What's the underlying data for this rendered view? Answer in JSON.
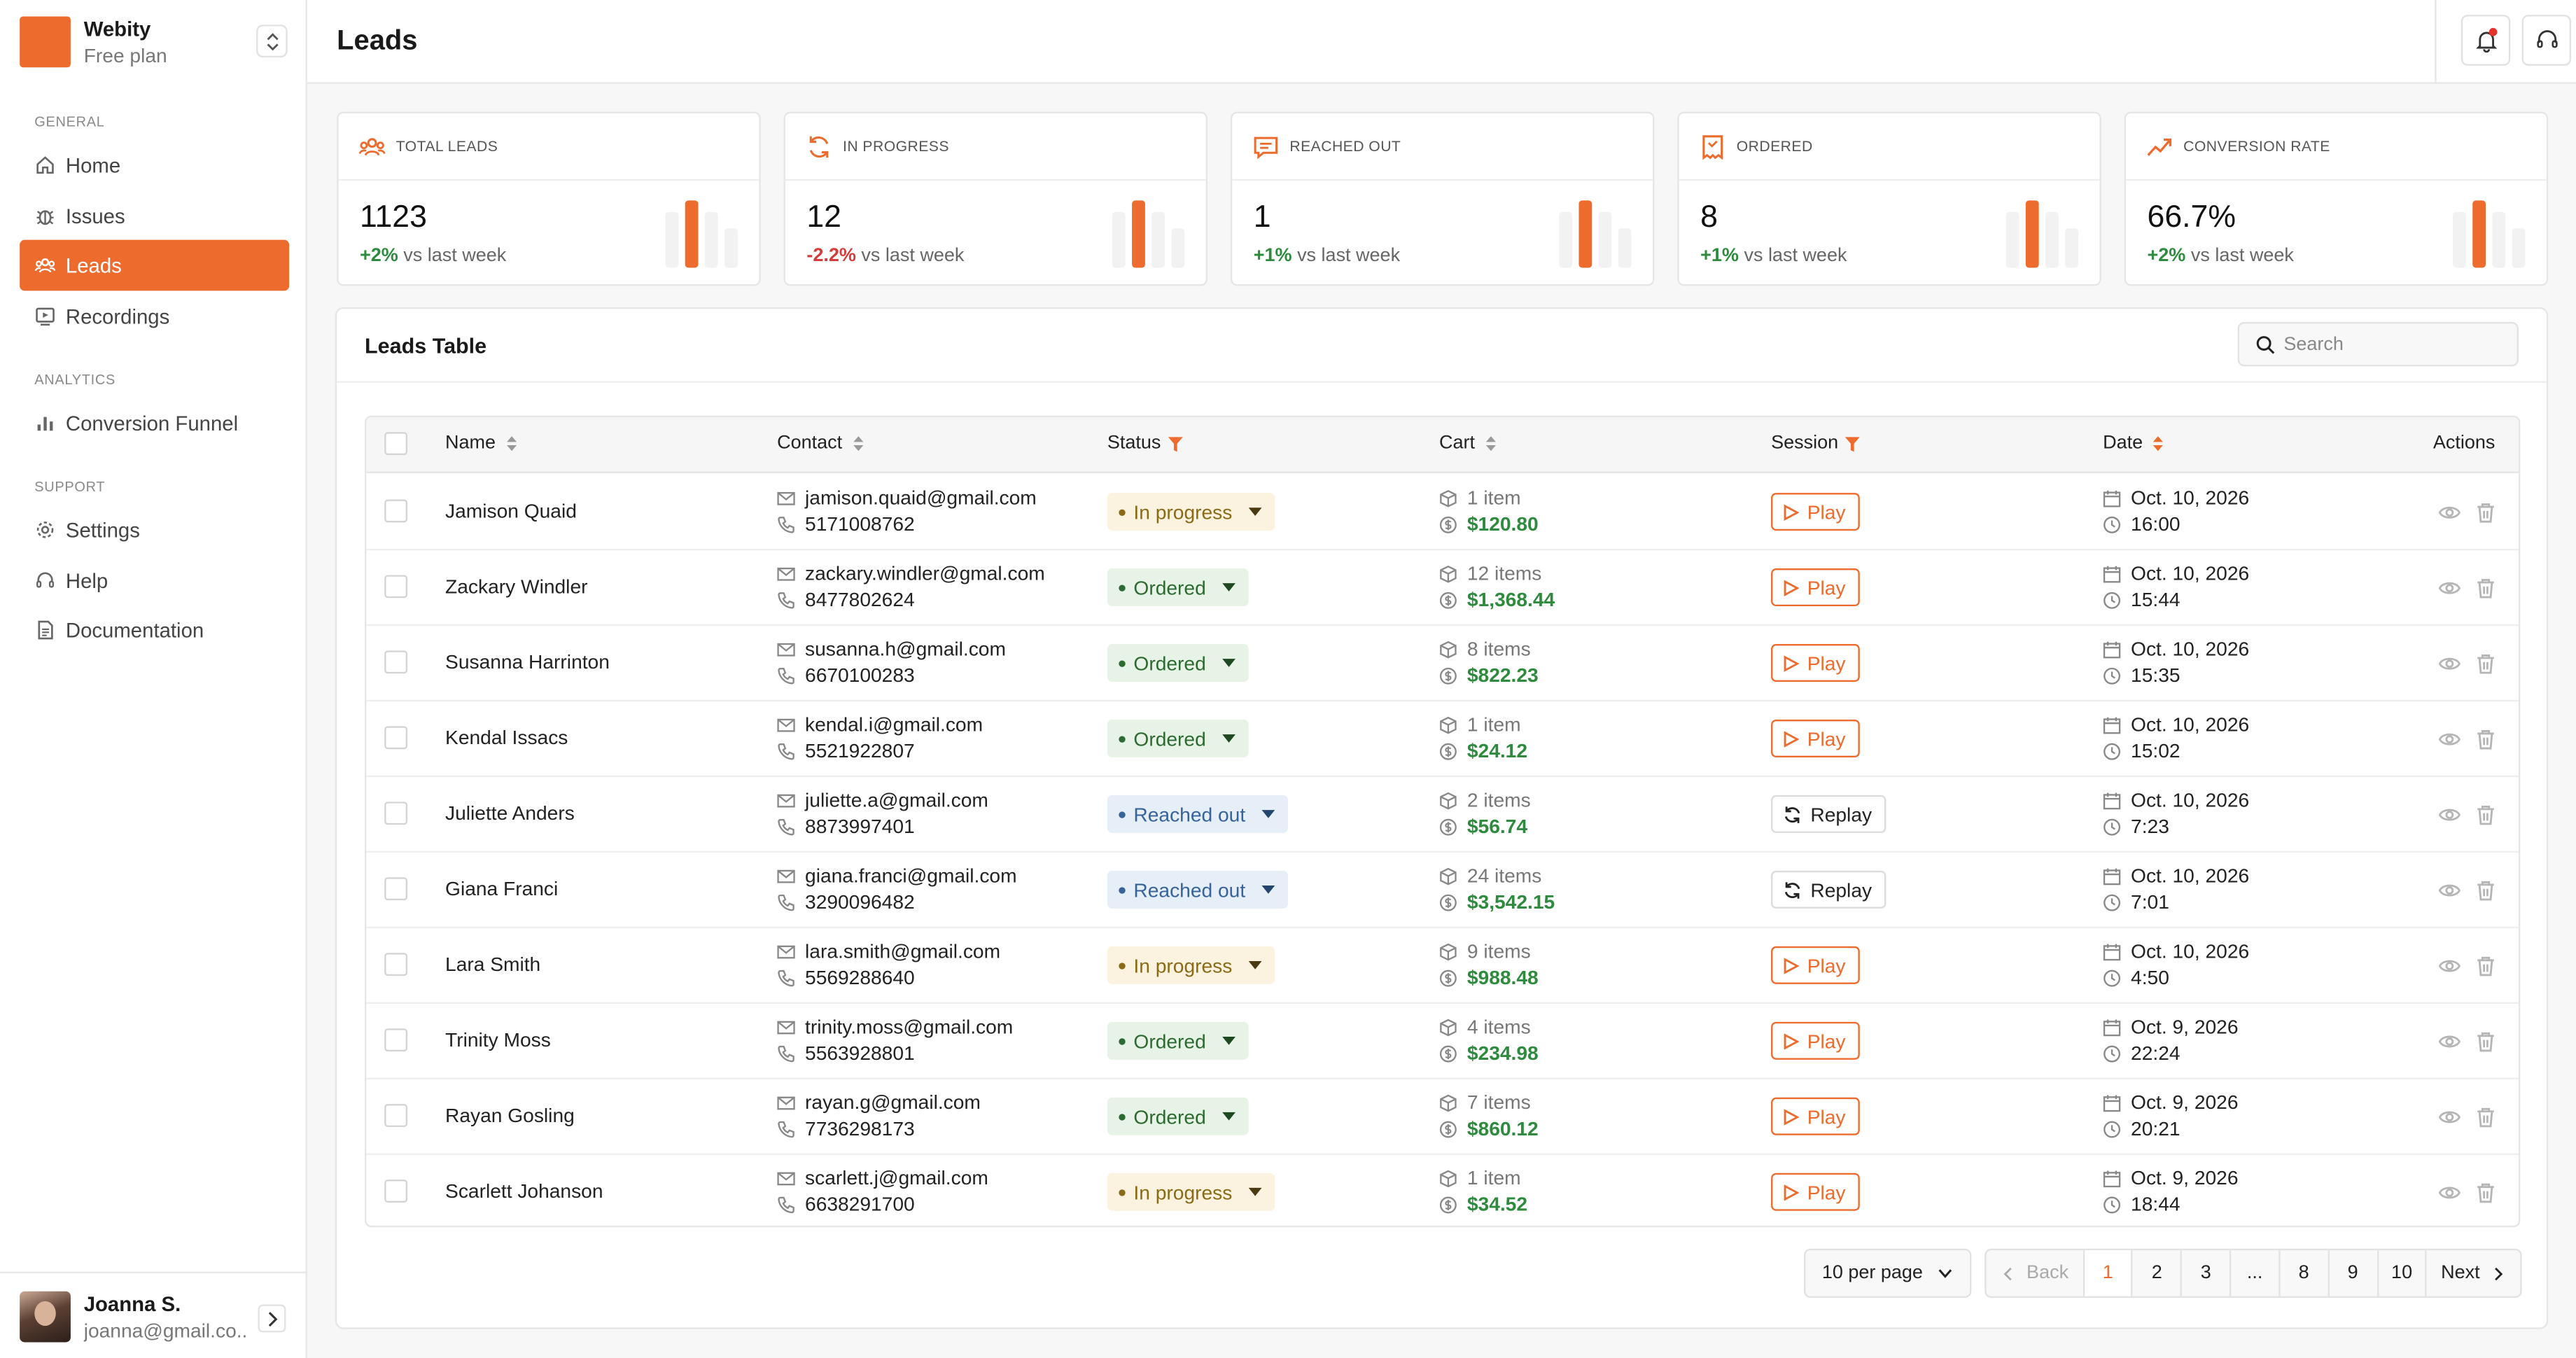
{
  "brand": {
    "name": "Webity",
    "plan": "Free plan"
  },
  "sidebar": {
    "sections": {
      "general": "GENERAL",
      "analytics": "ANALYTICS",
      "support": "SUPPORT"
    },
    "items": [
      {
        "label": "Home",
        "icon": "home-icon"
      },
      {
        "label": "Issues",
        "icon": "bug-icon"
      },
      {
        "label": "Leads",
        "icon": "users-icon",
        "active": true
      },
      {
        "label": "Recordings",
        "icon": "recording-icon"
      },
      {
        "label": "Conversion Funnel",
        "icon": "bar-chart-icon"
      },
      {
        "label": "Settings",
        "icon": "gear-icon"
      },
      {
        "label": "Help",
        "icon": "help-icon"
      },
      {
        "label": "Documentation",
        "icon": "document-icon"
      }
    ]
  },
  "user": {
    "name": "Joanna S.",
    "email": "joanna@gmail.co..."
  },
  "header": {
    "title": "Leads"
  },
  "stats": [
    {
      "label": "TOTAL LEADS",
      "value": "1123",
      "change": "+2%",
      "suffix": "vs last week",
      "trend": "up"
    },
    {
      "label": "IN PROGRESS",
      "value": "12",
      "change": "-2.2%",
      "suffix": "vs last week",
      "trend": "down"
    },
    {
      "label": "REACHED OUT",
      "value": "1",
      "change": "+1%",
      "suffix": "vs last week",
      "trend": "up"
    },
    {
      "label": "ORDERED",
      "value": "8",
      "change": "+1%",
      "suffix": "vs last week",
      "trend": "up"
    },
    {
      "label": "CONVERSION RATE",
      "value": "66.7%",
      "change": "+2%",
      "suffix": "vs last week",
      "trend": "up"
    }
  ],
  "table": {
    "title": "Leads Table",
    "search_placeholder": "Search",
    "columns": [
      "Name",
      "Contact",
      "Status",
      "Cart",
      "Session",
      "Date",
      "Actions"
    ],
    "rows": [
      {
        "name": "Jamison Quaid",
        "email": "jamison.quaid@gmail.com",
        "phone": "5171008762",
        "status": "In progress",
        "items": "1 item",
        "total": "$120.80",
        "session": "Play",
        "date": "Oct. 10, 2026",
        "time": "16:00"
      },
      {
        "name": "Zackary Windler",
        "email": "zackary.windler@gmal.com",
        "phone": "8477802624",
        "status": "Ordered",
        "items": "12 items",
        "total": "$1,368.44",
        "session": "Play",
        "date": "Oct. 10, 2026",
        "time": "15:44"
      },
      {
        "name": "Susanna Harrinton",
        "email": "susanna.h@gmail.com",
        "phone": "6670100283",
        "status": "Ordered",
        "items": "8 items",
        "total": "$822.23",
        "session": "Play",
        "date": "Oct. 10, 2026",
        "time": "15:35"
      },
      {
        "name": "Kendal Issacs",
        "email": "kendal.i@gmail.com",
        "phone": "5521922807",
        "status": "Ordered",
        "items": "1 item",
        "total": "$24.12",
        "session": "Play",
        "date": "Oct. 10, 2026",
        "time": "15:02"
      },
      {
        "name": "Juliette Anders",
        "email": "juliette.a@gmail.com",
        "phone": "8873997401",
        "status": "Reached out",
        "items": "2 items",
        "total": "$56.74",
        "session": "Replay",
        "date": "Oct. 10, 2026",
        "time": "7:23"
      },
      {
        "name": "Giana Franci",
        "email": "giana.franci@gmail.com",
        "phone": "3290096482",
        "status": "Reached out",
        "items": "24 items",
        "total": "$3,542.15",
        "session": "Replay",
        "date": "Oct. 10, 2026",
        "time": "7:01"
      },
      {
        "name": "Lara Smith",
        "email": "lara.smith@gmail.com",
        "phone": "5569288640",
        "status": "In progress",
        "items": "9 items",
        "total": "$988.48",
        "session": "Play",
        "date": "Oct. 10, 2026",
        "time": "4:50"
      },
      {
        "name": "Trinity Moss",
        "email": "trinity.moss@gmail.com",
        "phone": "5563928801",
        "status": "Ordered",
        "items": "4 items",
        "total": "$234.98",
        "session": "Play",
        "date": "Oct. 9, 2026",
        "time": "22:24"
      },
      {
        "name": "Rayan Gosling",
        "email": "rayan.g@gmail.com",
        "phone": "7736298173",
        "status": "Ordered",
        "items": "7 items",
        "total": "$860.12",
        "session": "Play",
        "date": "Oct. 9, 2026",
        "time": "20:21"
      },
      {
        "name": "Scarlett Johanson",
        "email": "scarlett.j@gmail.com",
        "phone": "6638291700",
        "status": "In progress",
        "items": "1 item",
        "total": "$34.52",
        "session": "Play",
        "date": "Oct. 9, 2026",
        "time": "18:44"
      }
    ]
  },
  "pagination": {
    "per_page": "10 per page",
    "back": "Back",
    "next": "Next",
    "pages": [
      "1",
      "2",
      "3",
      "...",
      "8",
      "9",
      "10"
    ],
    "current": "1"
  },
  "colors": {
    "accent": "#ec6b2d",
    "positive": "#2e8b3e",
    "negative": "#d43b3b"
  }
}
